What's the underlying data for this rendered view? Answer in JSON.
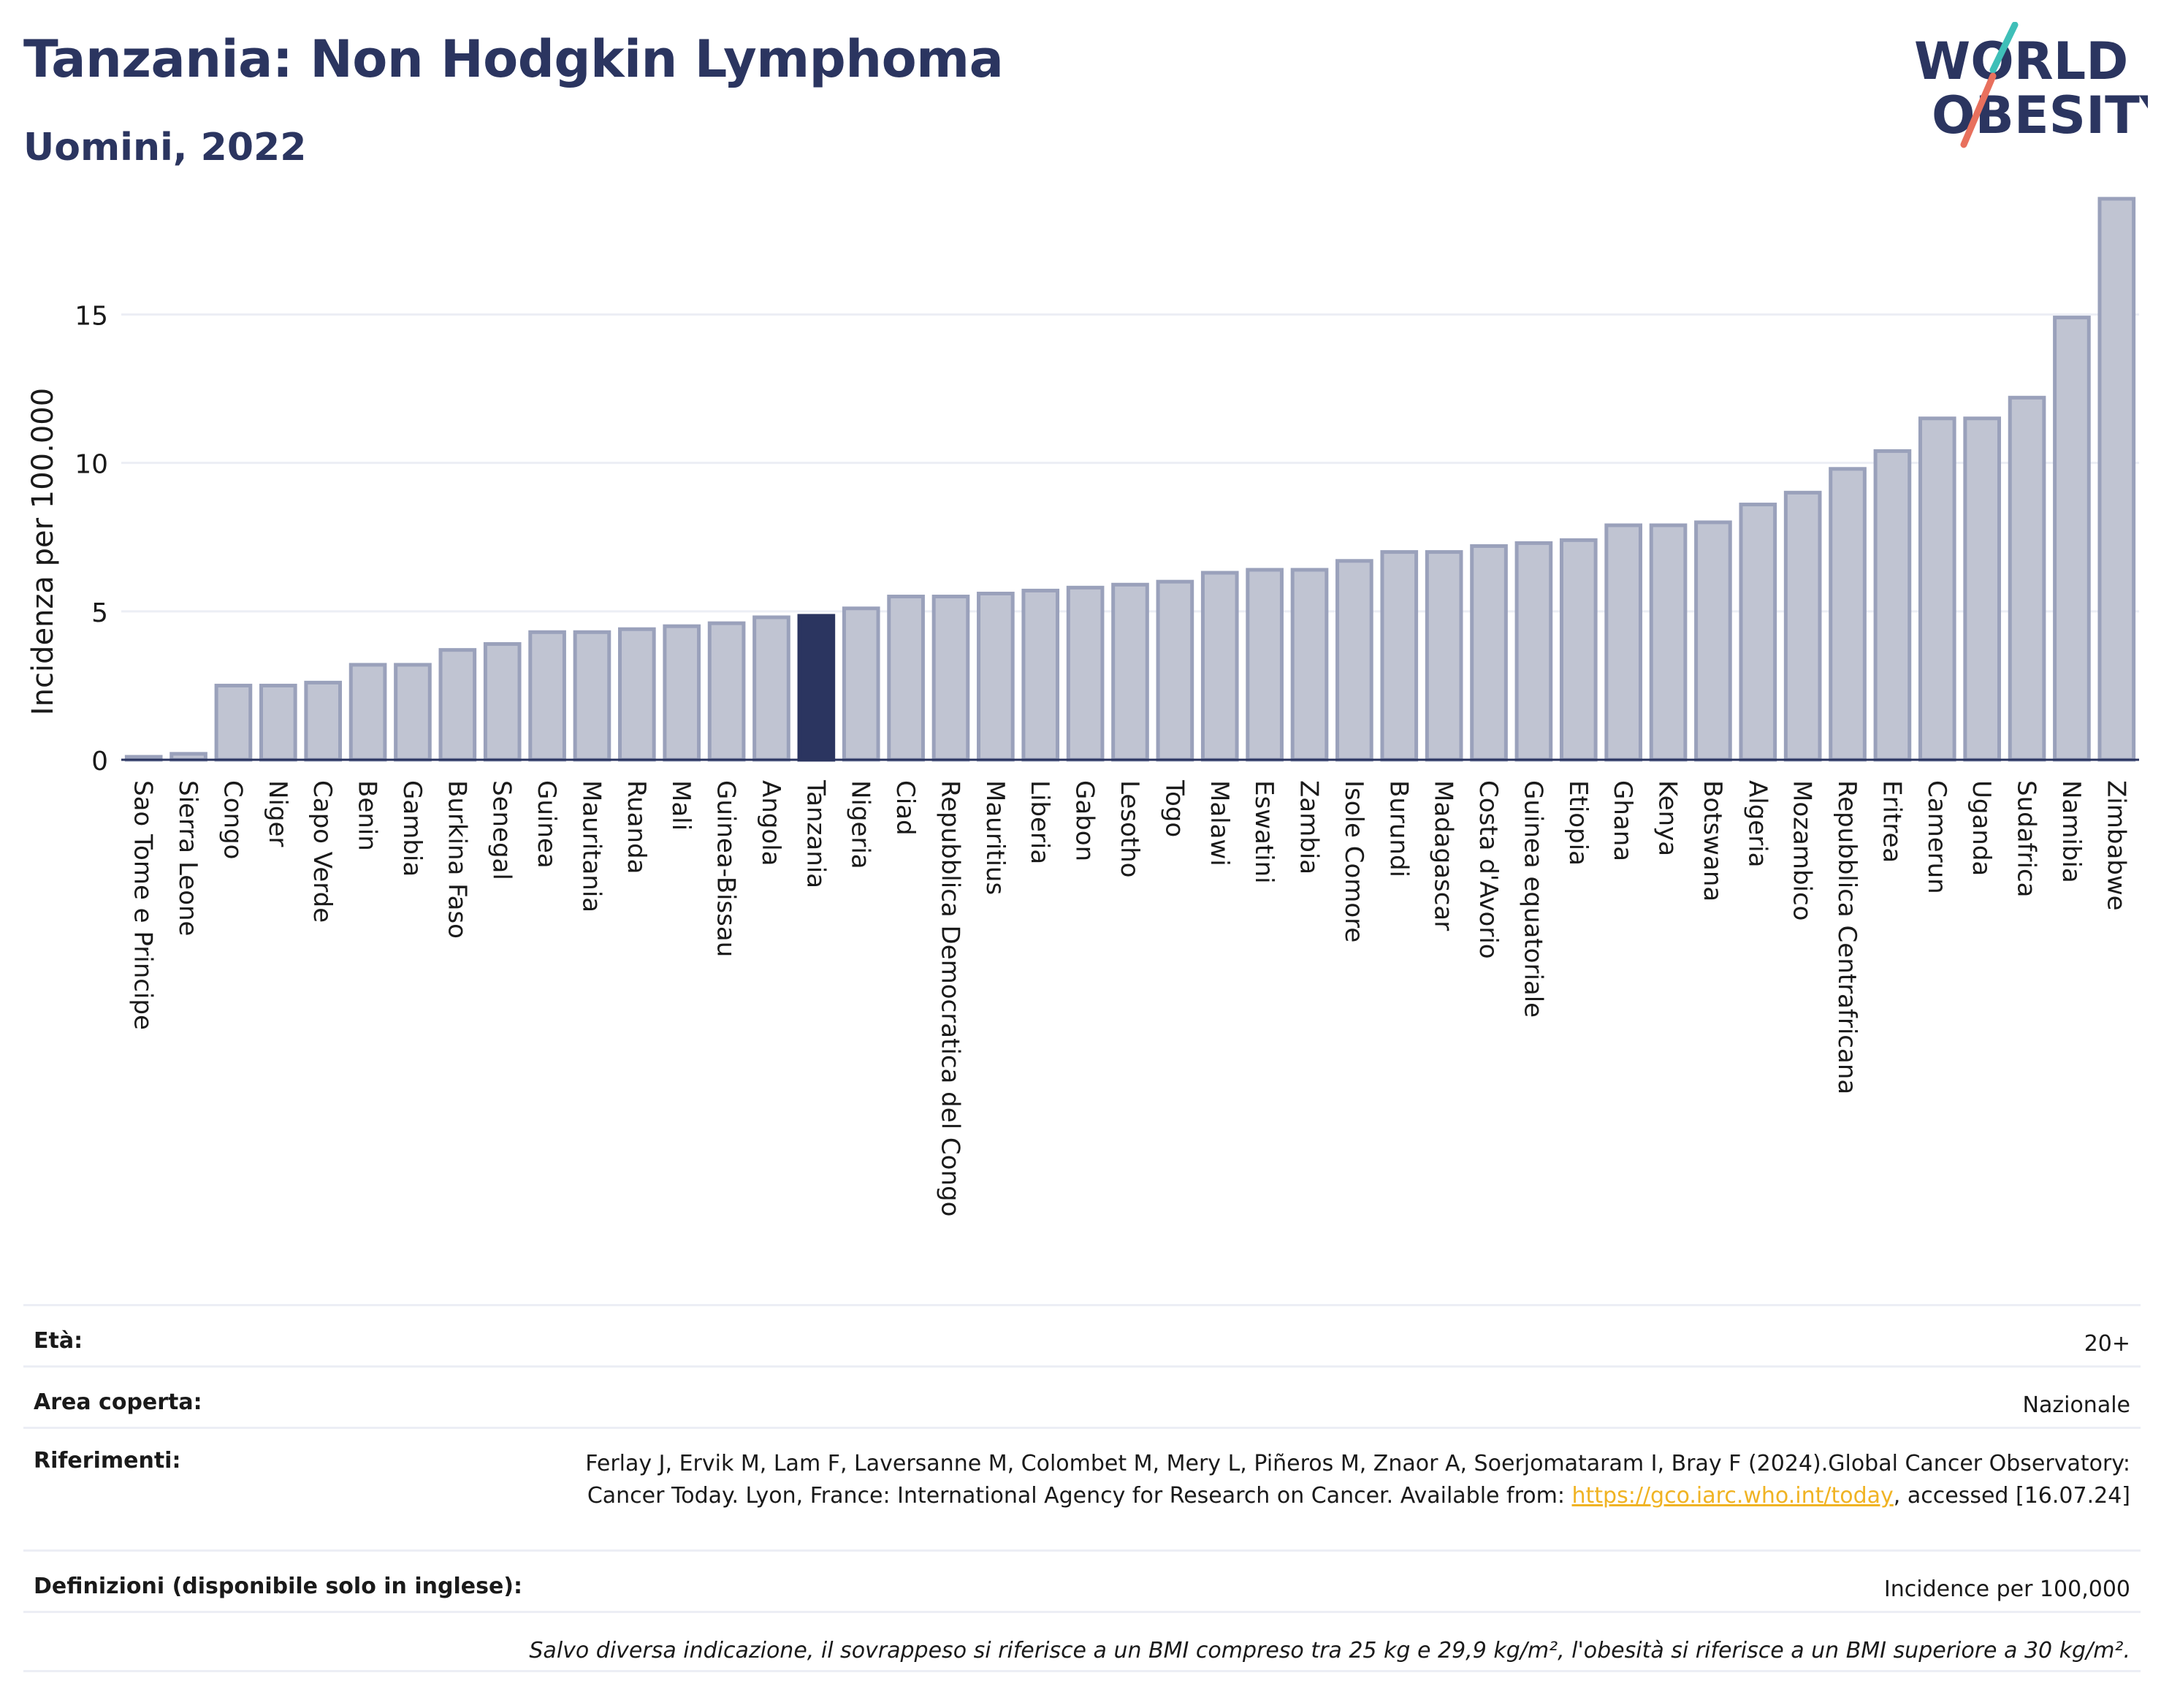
{
  "header": {
    "title": "Tanzania: Non Hodgkin Lymphoma",
    "subtitle": "Uomini, 2022",
    "logo_line1": "WORLD",
    "logo_line2": "OBESITY"
  },
  "colors": {
    "bar": "#c0c4d2",
    "bar_stroke": "#9aa1bb",
    "highlight": "#2b3560",
    "text": "#2b3560",
    "link": "#f0b323"
  },
  "chart_data": {
    "type": "bar",
    "ylabel": "Incidenza per 100.000",
    "xlabel": "",
    "ylim": [
      0,
      19
    ],
    "yticks": [
      0,
      5,
      10,
      15
    ],
    "grid": true,
    "highlight": "Tanzania",
    "categories": [
      "Sao Tome e Principe",
      "Sierra Leone",
      "Congo",
      "Niger",
      "Capo Verde",
      "Benin",
      "Gambia",
      "Burkina Faso",
      "Senegal",
      "Guinea",
      "Mauritania",
      "Ruanda",
      "Mali",
      "Guinea-Bissau",
      "Angola",
      "Tanzania",
      "Nigeria",
      "Ciad",
      "Repubblica Democratica del Congo",
      "Mauritius",
      "Liberia",
      "Gabon",
      "Lesotho",
      "Togo",
      "Malawi",
      "Eswatini",
      "Zambia",
      "Isole Comore",
      "Burundi",
      "Madagascar",
      "Costa d'Avorio",
      "Guinea equatoriale",
      "Etiopia",
      "Ghana",
      "Kenya",
      "Botswana",
      "Algeria",
      "Mozambico",
      "Repubblica Centrafricana",
      "Eritrea",
      "Camerun",
      "Uganda",
      "Sudafrica",
      "Namibia",
      "Zimbabwe"
    ],
    "values": [
      0.1,
      0.2,
      2.5,
      2.5,
      2.6,
      3.2,
      3.2,
      3.7,
      3.9,
      4.3,
      4.3,
      4.4,
      4.5,
      4.6,
      4.8,
      4.85,
      5.1,
      5.5,
      5.5,
      5.6,
      5.7,
      5.8,
      5.9,
      6.0,
      6.3,
      6.4,
      6.4,
      6.7,
      7.0,
      7.0,
      7.2,
      7.3,
      7.4,
      7.9,
      7.9,
      8.0,
      8.6,
      9.0,
      9.8,
      10.4,
      11.5,
      11.5,
      12.2,
      14.9,
      18.9
    ]
  },
  "info": {
    "age_label": "Età:",
    "age_value": "20+",
    "area_label": "Area coperta:",
    "area_value": "Nazionale",
    "refs_label": "Riferimenti:",
    "refs_text": "Ferlay J, Ervik M, Lam F, Laversanne M, Colombet M, Mery L, Piñeros M, Znaor A, Soerjomataram I, Bray F (2024).Global Cancer Observatory: Cancer Today. Lyon, France: International Agency for Research on Cancer. Available from: ",
    "refs_link": "https://gco.iarc.who.int/today",
    "refs_tail": ", accessed [16.07.24]",
    "def_label": "Definizioni (disponibile solo in inglese):",
    "def_value": "Incidence per 100,000",
    "note": "Salvo diversa indicazione, il sovrappeso si riferisce a un BMI compreso tra 25 kg e 29,9 kg/m², l'obesità si riferisce a un BMI superiore a 30 kg/m²."
  }
}
